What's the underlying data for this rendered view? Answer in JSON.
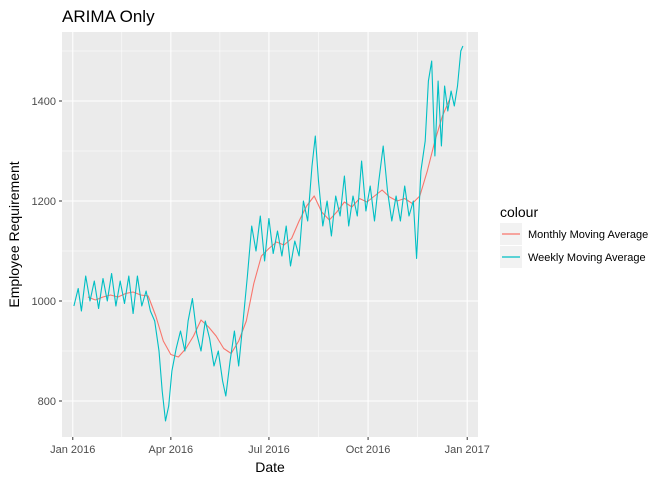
{
  "chart_data": {
    "type": "line",
    "title": "ARIMA Only",
    "xlabel": "Date",
    "ylabel": "Employee Requirement",
    "xlim": [
      "2015-12-22",
      "2017-01-11"
    ],
    "ylim": [
      728,
      1538
    ],
    "x_ticks": [
      {
        "date": "2016-01-01",
        "label": "Jan 2016"
      },
      {
        "date": "2016-04-01",
        "label": "Apr 2016"
      },
      {
        "date": "2016-07-01",
        "label": "Jul 2016"
      },
      {
        "date": "2016-10-01",
        "label": "Oct 2016"
      },
      {
        "date": "2017-01-01",
        "label": "Jan 2017"
      }
    ],
    "y_ticks": [
      800,
      1000,
      1200,
      1400
    ],
    "grid": true,
    "legend": {
      "title": "colour",
      "position": "right"
    },
    "series": [
      {
        "name": "Monthly Moving Average",
        "color": "#F8766D",
        "points": [
          [
            "2016-01-15",
            1008
          ],
          [
            "2016-01-22",
            1002
          ],
          [
            "2016-01-29",
            1008
          ],
          [
            "2016-02-05",
            1012
          ],
          [
            "2016-02-12",
            1008
          ],
          [
            "2016-02-19",
            1015
          ],
          [
            "2016-02-26",
            1018
          ],
          [
            "2016-03-04",
            1012
          ],
          [
            "2016-03-11",
            1010
          ],
          [
            "2016-03-18",
            970
          ],
          [
            "2016-03-25",
            920
          ],
          [
            "2016-04-01",
            893
          ],
          [
            "2016-04-08",
            888
          ],
          [
            "2016-04-15",
            905
          ],
          [
            "2016-04-22",
            930
          ],
          [
            "2016-04-29",
            962
          ],
          [
            "2016-05-06",
            948
          ],
          [
            "2016-05-13",
            930
          ],
          [
            "2016-05-20",
            905
          ],
          [
            "2016-05-27",
            895
          ],
          [
            "2016-06-03",
            920
          ],
          [
            "2016-06-10",
            960
          ],
          [
            "2016-06-17",
            1035
          ],
          [
            "2016-06-24",
            1090
          ],
          [
            "2016-07-01",
            1105
          ],
          [
            "2016-07-08",
            1118
          ],
          [
            "2016-07-15",
            1112
          ],
          [
            "2016-07-22",
            1125
          ],
          [
            "2016-07-29",
            1160
          ],
          [
            "2016-08-05",
            1190
          ],
          [
            "2016-08-12",
            1210
          ],
          [
            "2016-08-19",
            1178
          ],
          [
            "2016-08-26",
            1162
          ],
          [
            "2016-09-02",
            1178
          ],
          [
            "2016-09-09",
            1198
          ],
          [
            "2016-09-16",
            1188
          ],
          [
            "2016-09-23",
            1205
          ],
          [
            "2016-09-30",
            1198
          ],
          [
            "2016-10-07",
            1210
          ],
          [
            "2016-10-14",
            1222
          ],
          [
            "2016-10-21",
            1208
          ],
          [
            "2016-10-28",
            1200
          ],
          [
            "2016-11-04",
            1205
          ],
          [
            "2016-11-11",
            1195
          ],
          [
            "2016-11-18",
            1210
          ],
          [
            "2016-11-25",
            1260
          ],
          [
            "2016-12-02",
            1320
          ],
          [
            "2016-12-09",
            1370
          ],
          [
            "2016-12-16",
            1405
          ]
        ]
      },
      {
        "name": "Weekly Moving Average",
        "color": "#00BFC4",
        "points": [
          [
            "2016-01-02",
            990
          ],
          [
            "2016-01-06",
            1025
          ],
          [
            "2016-01-09",
            980
          ],
          [
            "2016-01-13",
            1050
          ],
          [
            "2016-01-17",
            1000
          ],
          [
            "2016-01-21",
            1040
          ],
          [
            "2016-01-25",
            985
          ],
          [
            "2016-01-29",
            1045
          ],
          [
            "2016-02-02",
            1000
          ],
          [
            "2016-02-06",
            1055
          ],
          [
            "2016-02-10",
            990
          ],
          [
            "2016-02-14",
            1040
          ],
          [
            "2016-02-18",
            995
          ],
          [
            "2016-02-22",
            1050
          ],
          [
            "2016-02-26",
            975
          ],
          [
            "2016-03-01",
            1050
          ],
          [
            "2016-03-05",
            990
          ],
          [
            "2016-03-09",
            1020
          ],
          [
            "2016-03-13",
            980
          ],
          [
            "2016-03-17",
            960
          ],
          [
            "2016-03-21",
            900
          ],
          [
            "2016-03-24",
            820
          ],
          [
            "2016-03-27",
            760
          ],
          [
            "2016-03-30",
            790
          ],
          [
            "2016-04-02",
            860
          ],
          [
            "2016-04-06",
            905
          ],
          [
            "2016-04-10",
            940
          ],
          [
            "2016-04-14",
            900
          ],
          [
            "2016-04-17",
            960
          ],
          [
            "2016-04-21",
            1005
          ],
          [
            "2016-04-25",
            935
          ],
          [
            "2016-04-29",
            900
          ],
          [
            "2016-05-03",
            960
          ],
          [
            "2016-05-07",
            925
          ],
          [
            "2016-05-11",
            870
          ],
          [
            "2016-05-15",
            900
          ],
          [
            "2016-05-19",
            840
          ],
          [
            "2016-05-22",
            810
          ],
          [
            "2016-05-26",
            880
          ],
          [
            "2016-05-30",
            940
          ],
          [
            "2016-06-03",
            870
          ],
          [
            "2016-06-07",
            960
          ],
          [
            "2016-06-11",
            1050
          ],
          [
            "2016-06-15",
            1150
          ],
          [
            "2016-06-19",
            1100
          ],
          [
            "2016-06-23",
            1170
          ],
          [
            "2016-06-27",
            1080
          ],
          [
            "2016-07-01",
            1165
          ],
          [
            "2016-07-05",
            1095
          ],
          [
            "2016-07-09",
            1140
          ],
          [
            "2016-07-13",
            1090
          ],
          [
            "2016-07-17",
            1150
          ],
          [
            "2016-07-21",
            1070
          ],
          [
            "2016-07-25",
            1120
          ],
          [
            "2016-07-29",
            1090
          ],
          [
            "2016-08-02",
            1200
          ],
          [
            "2016-08-06",
            1160
          ],
          [
            "2016-08-10",
            1270
          ],
          [
            "2016-08-13",
            1330
          ],
          [
            "2016-08-16",
            1240
          ],
          [
            "2016-08-20",
            1150
          ],
          [
            "2016-08-24",
            1200
          ],
          [
            "2016-08-28",
            1130
          ],
          [
            "2016-09-01",
            1210
          ],
          [
            "2016-09-05",
            1170
          ],
          [
            "2016-09-09",
            1250
          ],
          [
            "2016-09-13",
            1150
          ],
          [
            "2016-09-17",
            1210
          ],
          [
            "2016-09-21",
            1170
          ],
          [
            "2016-09-25",
            1280
          ],
          [
            "2016-09-29",
            1180
          ],
          [
            "2016-10-03",
            1230
          ],
          [
            "2016-10-07",
            1160
          ],
          [
            "2016-10-11",
            1240
          ],
          [
            "2016-10-15",
            1310
          ],
          [
            "2016-10-19",
            1220
          ],
          [
            "2016-10-23",
            1160
          ],
          [
            "2016-10-27",
            1210
          ],
          [
            "2016-10-31",
            1160
          ],
          [
            "2016-11-04",
            1230
          ],
          [
            "2016-11-08",
            1170
          ],
          [
            "2016-11-12",
            1200
          ],
          [
            "2016-11-15",
            1085
          ],
          [
            "2016-11-19",
            1260
          ],
          [
            "2016-11-23",
            1320
          ],
          [
            "2016-11-26",
            1440
          ],
          [
            "2016-11-29",
            1480
          ],
          [
            "2016-12-02",
            1290
          ],
          [
            "2016-12-05",
            1440
          ],
          [
            "2016-12-08",
            1310
          ],
          [
            "2016-12-11",
            1430
          ],
          [
            "2016-12-14",
            1380
          ],
          [
            "2016-12-17",
            1420
          ],
          [
            "2016-12-20",
            1390
          ],
          [
            "2016-12-23",
            1430
          ],
          [
            "2016-12-26",
            1500
          ],
          [
            "2016-12-28",
            1510
          ]
        ]
      }
    ]
  }
}
